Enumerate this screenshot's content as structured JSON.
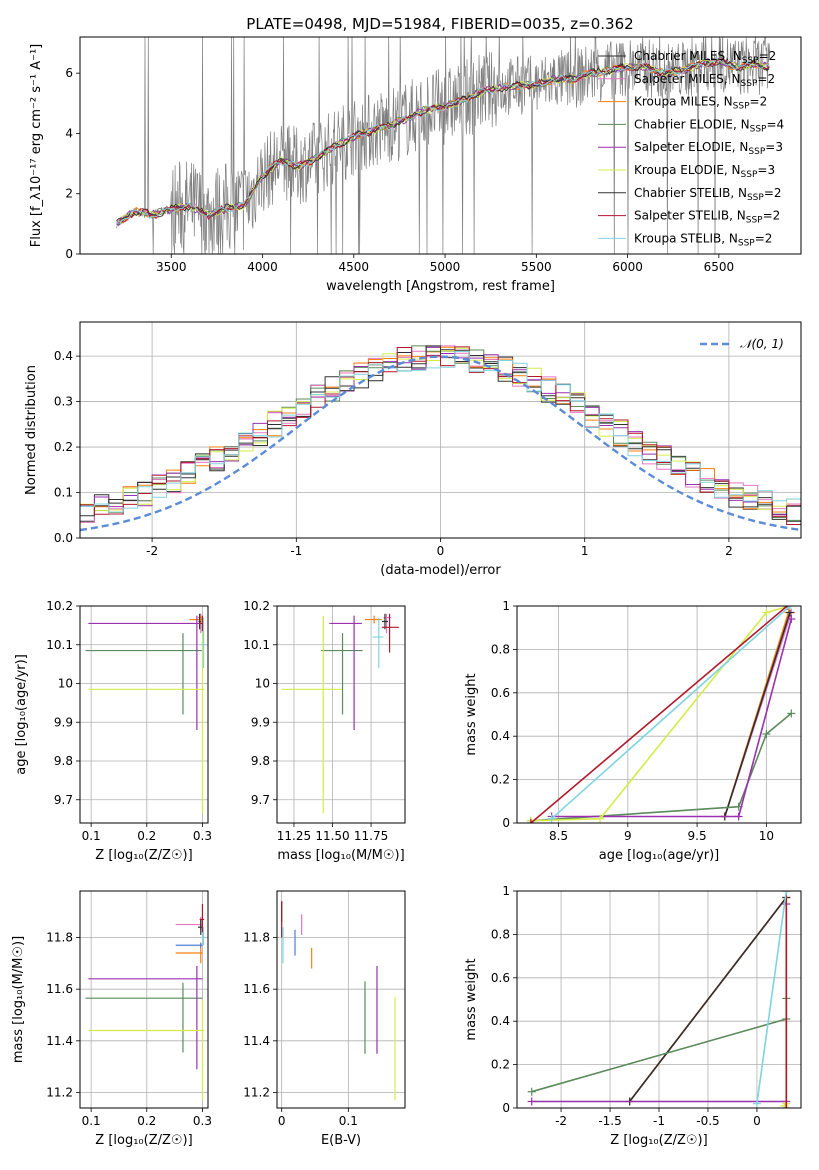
{
  "figure": {
    "title": "PLATE=0498, MJD=51984, FIBERID=0035, z=0.362"
  },
  "colors": {
    "chabrier_miles": "#2f2f2f",
    "salpeter_miles": "#e377c2",
    "kroupa_miles": "#ff7f0e",
    "chabrier_elodie": "#5b8a5b",
    "salpeter_elodie": "#9b30b0",
    "kroupa_elodie": "#d4ec4a",
    "chabrier_stelib": "#333333",
    "salpeter_stelib": "#b2182b",
    "kroupa_stelib": "#7fd4e0",
    "extra_blue": "#4a7fd8",
    "data_grey": "#7f7f7f",
    "normal_curve": "#5b8bd9"
  },
  "chart_data": [
    {
      "id": "spectrum",
      "type": "line",
      "xlabel": "wavelength [Angstrom, rest frame]",
      "ylabel": "Flux [f_λ10⁻¹⁷ erg cm⁻² s⁻¹ A⁻¹]",
      "xlim": [
        3000,
        6950
      ],
      "ylim": [
        0,
        7.2
      ],
      "xticks": [
        3500,
        4000,
        4500,
        5000,
        5500,
        6000,
        6500
      ],
      "yticks": [
        0,
        2,
        4,
        6
      ],
      "grid": false,
      "legend_position": "top-right",
      "legend": [
        {
          "label": "Chabrier MILES, N_SSP=2",
          "color": "#2f2f2f"
        },
        {
          "label": "Salpeter MILES, N_SSP=2",
          "color": "#e377c2"
        },
        {
          "label": "Kroupa MILES, N_SSP=2",
          "color": "#ff7f0e"
        },
        {
          "label": "Chabrier ELODIE, N_SSP=4",
          "color": "#5b8a5b"
        },
        {
          "label": "Salpeter ELODIE, N_SSP=3",
          "color": "#9b30b0"
        },
        {
          "label": "Kroupa ELODIE, N_SSP=3",
          "color": "#d4ec4a"
        },
        {
          "label": "Chabrier STELIB, N_SSP=2",
          "color": "#333333"
        },
        {
          "label": "Salpeter STELIB, N_SSP=2",
          "color": "#b2182b"
        },
        {
          "label": "Kroupa STELIB, N_SSP=2",
          "color": "#7fd4e0"
        }
      ],
      "model_continuum": {
        "x": [
          3200,
          3300,
          3400,
          3500,
          3600,
          3700,
          3800,
          3900,
          4000,
          4100,
          4200,
          4300,
          4400,
          4500,
          4600,
          4700,
          4800,
          4900,
          5000,
          5100,
          5200,
          5300,
          5400,
          5500,
          5600,
          5700,
          5800,
          5900,
          6000,
          6100,
          6200,
          6300,
          6400,
          6500,
          6600,
          6700,
          6780
        ],
        "y": [
          1.0,
          1.4,
          1.3,
          1.5,
          1.6,
          1.3,
          1.5,
          1.6,
          2.6,
          3.1,
          2.9,
          3.2,
          3.6,
          3.9,
          4.1,
          4.3,
          4.5,
          4.8,
          4.9,
          5.1,
          5.4,
          5.5,
          5.6,
          5.6,
          5.8,
          5.8,
          6.0,
          6.1,
          6.2,
          6.2,
          6.0,
          6.1,
          6.3,
          6.4,
          6.2,
          6.3,
          6.2
        ]
      },
      "observed_range": [
        3200,
        6780
      ]
    },
    {
      "id": "residuals",
      "type": "step",
      "xlabel": "(data-model)/error",
      "ylabel": "Normed distribution",
      "xlim": [
        -2.5,
        2.5
      ],
      "ylim": [
        0,
        0.475
      ],
      "xticks": [
        -2,
        -1,
        0,
        1,
        2
      ],
      "yticks": [
        0.0,
        0.1,
        0.2,
        0.3,
        0.4
      ],
      "grid": true,
      "legend_position": "top-right",
      "legend": [
        {
          "label": "𝒩(0, 1)",
          "color": "#5b8bd9",
          "style": "dashed"
        }
      ],
      "bin_edges_start": -2.5,
      "bin_width": 0.1
    },
    {
      "id": "age_vs_Z",
      "type": "errorbar",
      "xlabel": "Z [log₁₀(Z/Z☉)]",
      "ylabel": "age  [log₁₀(age/yr)]",
      "xlim": [
        0.08,
        0.31
      ],
      "ylim": [
        9.64,
        10.2
      ],
      "xticks": [
        0.1,
        0.2,
        0.3
      ],
      "yticks": [
        9.7,
        9.8,
        9.9,
        10.0,
        10.1,
        10.2
      ],
      "grid": true,
      "points": [
        {
          "x": 0.297,
          "y": 10.17,
          "xerr": [
            0.005,
            0.003
          ],
          "yerr": [
            0.04,
            0.01
          ],
          "color": "#e377c2"
        },
        {
          "x": 0.297,
          "y": 10.165,
          "xerr": [
            0.02,
            0.003
          ],
          "yerr": [
            0.01,
            0.01
          ],
          "color": "#ff7f0e"
        },
        {
          "x": 0.295,
          "y": 10.16,
          "xerr": [
            0.002,
            0.002
          ],
          "yerr": [
            0.02,
            0.02
          ],
          "color": "#2f2f2f"
        },
        {
          "x": 0.265,
          "y": 10.085,
          "xerr": [
            0.175,
            0.035
          ],
          "yerr": [
            0.165,
            0.045
          ],
          "color": "#5b8a5b"
        },
        {
          "x": 0.29,
          "y": 10.155,
          "xerr": [
            0.195,
            0.01
          ],
          "yerr": [
            0.275,
            0.02
          ],
          "color": "#9b30b0"
        },
        {
          "x": 0.3,
          "y": 9.985,
          "xerr": [
            0.205,
            0.003
          ],
          "yerr": [
            0.32,
            0.19
          ],
          "color": "#d4ec4a"
        },
        {
          "x": 0.3,
          "y": 10.155,
          "xerr": [
            0.005,
            0.003
          ],
          "yerr": [
            0.02,
            0.02
          ],
          "color": "#b2182b"
        },
        {
          "x": 0.302,
          "y": 10.1,
          "xerr": [
            0.004,
            0.003
          ],
          "yerr": [
            0.06,
            0.07
          ],
          "color": "#7fd4e0"
        }
      ]
    },
    {
      "id": "age_vs_mass",
      "type": "errorbar",
      "xlabel": "mass [log₁₀(M/M☉)]",
      "ylabel": "",
      "xlim": [
        11.14,
        11.97
      ],
      "ylim": [
        9.64,
        10.2
      ],
      "xticks": [
        11.25,
        11.5,
        11.75
      ],
      "xticklabels": [
        "11.25",
        "11.50",
        "11.75"
      ],
      "yticks": [
        9.7,
        9.8,
        9.9,
        10.0,
        10.1,
        10.2
      ],
      "grid": true,
      "points": [
        {
          "x": 11.85,
          "y": 10.17,
          "xerr": [
            0.02,
            0.03
          ],
          "yerr": [
            0.04,
            0.01
          ],
          "color": "#e377c2"
        },
        {
          "x": 11.77,
          "y": 10.165,
          "xerr": [
            0.06,
            0.05
          ],
          "yerr": [
            0.01,
            0.01
          ],
          "color": "#ff7f0e"
        },
        {
          "x": 11.84,
          "y": 10.16,
          "xerr": [
            0.02,
            0.02
          ],
          "yerr": [
            0.02,
            0.02
          ],
          "color": "#2f2f2f"
        },
        {
          "x": 11.565,
          "y": 10.085,
          "xerr": [
            0.14,
            0.13
          ],
          "yerr": [
            0.165,
            0.045
          ],
          "color": "#5b8a5b"
        },
        {
          "x": 11.64,
          "y": 10.155,
          "xerr": [
            0.16,
            0.05
          ],
          "yerr": [
            0.275,
            0.02
          ],
          "color": "#9b30b0"
        },
        {
          "x": 11.44,
          "y": 9.985,
          "xerr": [
            0.27,
            0.12
          ],
          "yerr": [
            0.32,
            0.19
          ],
          "color": "#d4ec4a"
        },
        {
          "x": 11.87,
          "y": 10.145,
          "xerr": [
            0.05,
            0.06
          ],
          "yerr": [
            0.065,
            0.035
          ],
          "color": "#b2182b"
        },
        {
          "x": 11.8,
          "y": 10.12,
          "xerr": [
            0.04,
            0.03
          ],
          "yerr": [
            0.08,
            0.05
          ],
          "color": "#7fd4e0"
        }
      ]
    },
    {
      "id": "massweight_vs_age",
      "type": "line",
      "xlabel": "age  [log₁₀(age/yr)]",
      "ylabel": "mass weight",
      "xlim": [
        8.2,
        10.25
      ],
      "ylim": [
        0,
        1.0
      ],
      "xticks": [
        8.5,
        9.0,
        9.5,
        10.0
      ],
      "yticks": [
        0.0,
        0.2,
        0.4,
        0.6,
        0.8,
        1.0
      ],
      "grid": true,
      "series": [
        {
          "color": "#e377c2",
          "x": [
            9.7,
            10.18
          ],
          "y": [
            0.03,
            0.97
          ]
        },
        {
          "color": "#ff7f0e",
          "x": [
            9.7,
            10.16
          ],
          "y": [
            0.03,
            0.97
          ]
        },
        {
          "color": "#2f2f2f",
          "x": [
            9.7,
            10.17
          ],
          "y": [
            0.03,
            0.97
          ]
        },
        {
          "color": "#5b8a5b",
          "x": [
            8.3,
            9.8,
            10.0,
            10.18
          ],
          "y": [
            0.01,
            0.075,
            0.41,
            0.505
          ]
        },
        {
          "color": "#9b30b0",
          "x": [
            8.45,
            9.8,
            10.18
          ],
          "y": [
            0.03,
            0.03,
            0.94
          ]
        },
        {
          "color": "#d4ec4a",
          "x": [
            8.3,
            8.8,
            10.0,
            10.17
          ],
          "y": [
            0.01,
            0.02,
            0.97,
            1.0
          ]
        },
        {
          "color": "#b2182b",
          "x": [
            8.3,
            10.15
          ],
          "y": [
            0.0,
            1.0
          ]
        },
        {
          "color": "#7fd4e0",
          "x": [
            8.45,
            10.17
          ],
          "y": [
            0.02,
            1.0
          ]
        }
      ]
    },
    {
      "id": "mass_vs_Z",
      "type": "errorbar",
      "xlabel": "Z [log₁₀(Z/Z☉)]",
      "ylabel": "mass [log₁₀(M/M☉)]",
      "xlim": [
        0.08,
        0.31
      ],
      "ylim": [
        11.14,
        11.98
      ],
      "xticks": [
        0.1,
        0.2,
        0.3
      ],
      "yticks": [
        11.2,
        11.4,
        11.6,
        11.8
      ],
      "grid": true,
      "points": [
        {
          "x": 0.297,
          "y": 11.85,
          "xerr": [
            0.045,
            0.003
          ],
          "yerr": [
            0.02,
            0.03
          ],
          "color": "#e377c2"
        },
        {
          "x": 0.297,
          "y": 11.74,
          "xerr": [
            0.045,
            0.003
          ],
          "yerr": [
            0.04,
            0.04
          ],
          "color": "#ff7f0e"
        },
        {
          "x": 0.297,
          "y": 11.84,
          "xerr": [
            0.005,
            0.003
          ],
          "yerr": [
            0.03,
            0.03
          ],
          "color": "#2f2f2f"
        },
        {
          "x": 0.265,
          "y": 11.565,
          "xerr": [
            0.175,
            0.035
          ],
          "yerr": [
            0.21,
            0.06
          ],
          "color": "#5b8a5b"
        },
        {
          "x": 0.29,
          "y": 11.64,
          "xerr": [
            0.195,
            0.01
          ],
          "yerr": [
            0.35,
            0.05
          ],
          "color": "#9b30b0"
        },
        {
          "x": 0.3,
          "y": 11.44,
          "xerr": [
            0.205,
            0.003
          ],
          "yerr": [
            0.27,
            0.12
          ],
          "color": "#d4ec4a"
        },
        {
          "x": 0.3,
          "y": 11.87,
          "xerr": [
            0.005,
            0.003
          ],
          "yerr": [
            0.05,
            0.06
          ],
          "color": "#b2182b"
        },
        {
          "x": 0.302,
          "y": 11.8,
          "xerr": [
            0.004,
            0.003
          ],
          "yerr": [
            0.03,
            0.04
          ],
          "color": "#7fd4e0"
        },
        {
          "x": 0.297,
          "y": 11.77,
          "xerr": [
            0.045,
            0.003
          ],
          "yerr": [
            0.01,
            0.01
          ],
          "color": "#4a7fd8"
        }
      ]
    },
    {
      "id": "mass_vs_ebv",
      "type": "errorbar",
      "xlabel": "E(B-V)",
      "ylabel": "",
      "xlim": [
        -0.007,
        0.185
      ],
      "ylim": [
        11.14,
        11.98
      ],
      "xticks": [
        0.0,
        0.1
      ],
      "yticks": [
        11.2,
        11.4,
        11.6,
        11.8
      ],
      "grid": true,
      "points": [
        {
          "x": 0.03,
          "y": 11.85,
          "xerr": [
            0,
            0
          ],
          "yerr": [
            0.04,
            0.04
          ],
          "color": "#e377c2"
        },
        {
          "x": 0.045,
          "y": 11.72,
          "xerr": [
            0,
            0
          ],
          "yerr": [
            0.04,
            0.04
          ],
          "color": "#ff7f0e"
        },
        {
          "x": 0.0,
          "y": 11.9,
          "xerr": [
            0,
            0
          ],
          "yerr": [
            0.04,
            0.04
          ],
          "color": "#2f2f2f"
        },
        {
          "x": 0.125,
          "y": 11.49,
          "xerr": [
            0,
            0
          ],
          "yerr": [
            0.14,
            0.14
          ],
          "color": "#5b8a5b"
        },
        {
          "x": 0.143,
          "y": 11.52,
          "xerr": [
            0,
            0
          ],
          "yerr": [
            0.17,
            0.17
          ],
          "color": "#9b30b0"
        },
        {
          "x": 0.17,
          "y": 11.37,
          "xerr": [
            0,
            0
          ],
          "yerr": [
            0.2,
            0.2
          ],
          "color": "#d4ec4a"
        },
        {
          "x": 0.0,
          "y": 11.87,
          "xerr": [
            0,
            0
          ],
          "yerr": [
            0.07,
            0.07
          ],
          "color": "#b2182b"
        },
        {
          "x": 0.002,
          "y": 11.77,
          "xerr": [
            0,
            0
          ],
          "yerr": [
            0.07,
            0.07
          ],
          "color": "#7fd4e0"
        },
        {
          "x": 0.02,
          "y": 11.78,
          "xerr": [
            0,
            0
          ],
          "yerr": [
            0.05,
            0.05
          ],
          "color": "#4a7fd8"
        }
      ]
    },
    {
      "id": "massweight_vs_Z",
      "type": "line",
      "xlabel": "Z [log₁₀(Z/Z☉)]",
      "ylabel": "mass weight",
      "xlim": [
        -2.45,
        0.45
      ],
      "ylim": [
        0,
        1.0
      ],
      "xticks": [
        -2.0,
        -1.5,
        -1.0,
        -0.5,
        0.0
      ],
      "yticks": [
        0.0,
        0.2,
        0.4,
        0.6,
        0.8,
        1.0
      ],
      "grid": true,
      "series": [
        {
          "color": "#e377c2",
          "x": [
            -1.3,
            0.3
          ],
          "y": [
            0.03,
            0.97
          ]
        },
        {
          "color": "#ff7f0e",
          "x": [
            -1.3,
            0.3
          ],
          "y": [
            0.03,
            0.97
          ]
        },
        {
          "color": "#2f2f2f",
          "x": [
            -1.3,
            0.3
          ],
          "y": [
            0.03,
            0.97
          ]
        },
        {
          "color": "#5b8a5b",
          "x": [
            -2.3,
            0.3,
            0.3
          ],
          "y": [
            0.075,
            0.41,
            0.505
          ]
        },
        {
          "color": "#9b30b0",
          "x": [
            -2.3,
            0.3,
            0.3
          ],
          "y": [
            0.03,
            0.03,
            0.94
          ]
        },
        {
          "color": "#d4ec4a",
          "x": [
            0.28,
            0.3,
            0.3
          ],
          "y": [
            0.01,
            0.02,
            1.0
          ]
        },
        {
          "color": "#b2182b",
          "x": [
            0.3,
            0.3
          ],
          "y": [
            0.0,
            1.0
          ]
        },
        {
          "color": "#7fd4e0",
          "x": [
            0.0,
            0.3
          ],
          "y": [
            0.02,
            1.0
          ]
        }
      ]
    }
  ]
}
